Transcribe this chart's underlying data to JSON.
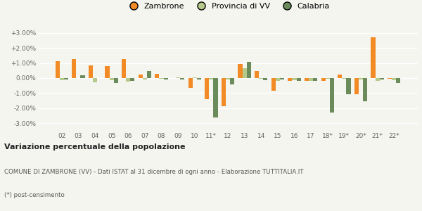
{
  "categories": [
    "02",
    "03",
    "04",
    "05",
    "06",
    "07",
    "08",
    "09",
    "10",
    "11*",
    "12",
    "13",
    "14",
    "15",
    "16",
    "17",
    "18*",
    "19*",
    "20*",
    "21*",
    "22*"
  ],
  "zambrone": [
    1.1,
    1.25,
    0.85,
    0.8,
    1.28,
    0.22,
    0.28,
    0.0,
    -0.65,
    -1.4,
    -1.85,
    0.95,
    0.45,
    -0.85,
    -0.18,
    -0.18,
    -0.18,
    0.22,
    -1.08,
    2.7,
    -0.05
  ],
  "provincia": [
    -0.12,
    0.0,
    -0.3,
    -0.12,
    -0.22,
    -0.1,
    -0.05,
    0.05,
    0.05,
    -0.08,
    -0.1,
    0.65,
    -0.05,
    -0.2,
    -0.15,
    -0.18,
    -0.05,
    -0.05,
    -0.08,
    -0.18,
    -0.12
  ],
  "calabria": [
    -0.08,
    0.18,
    0.0,
    -0.32,
    -0.18,
    0.48,
    -0.08,
    -0.08,
    -0.08,
    -2.6,
    -0.4,
    1.08,
    -0.12,
    -0.1,
    -0.18,
    -0.2,
    -2.28,
    -1.05,
    -1.55,
    -0.08,
    -0.32
  ],
  "zambrone_color": "#f28a25",
  "provincia_color": "#b5c98a",
  "calabria_color": "#6b8c5a",
  "bg_color": "#f5f5f0",
  "grid_color": "#ffffff",
  "title_bold": "Variazione percentuale della popolazione",
  "subtitle": "COMUNE DI ZAMBRONE (VV) - Dati ISTAT al 31 dicembre di ogni anno - Elaborazione TUTTITALIA.IT",
  "footnote": "(*) post-censimento",
  "ylim": [
    -3.5,
    3.5
  ],
  "yticks": [
    -3.0,
    -2.0,
    -1.0,
    0.0,
    1.0,
    2.0,
    3.0
  ],
  "legend_labels": [
    "Zambrone",
    "Provincia di VV",
    "Calabria"
  ]
}
